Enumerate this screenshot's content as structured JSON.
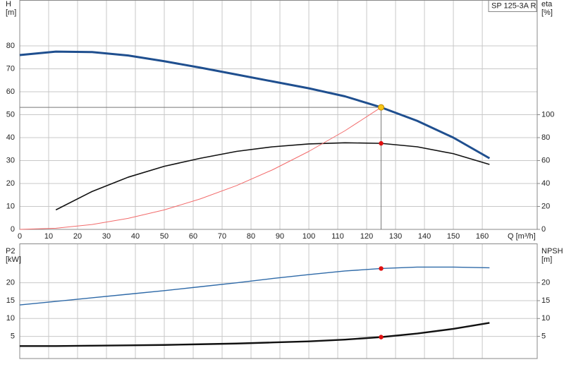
{
  "chart_data": [
    {
      "type": "line",
      "legend": "SP 125-3A R",
      "ylabel": "H",
      "ylabel_unit": "[m]",
      "y2label": "eta",
      "y2label_unit": "[%]",
      "xlabel": "Q [m³/h]",
      "xlim": [
        0,
        179
      ],
      "ylim": [
        0,
        100
      ],
      "y2lim": [
        0,
        200
      ],
      "xticks": [
        0,
        10,
        20,
        30,
        40,
        50,
        60,
        70,
        80,
        90,
        100,
        110,
        120,
        130,
        140,
        150,
        160
      ],
      "yticks": [
        0,
        10,
        20,
        30,
        40,
        50,
        60,
        70,
        80
      ],
      "y2ticks": [
        0,
        20,
        40,
        60,
        80,
        100
      ],
      "grid": true,
      "x": [
        0,
        12.5,
        25,
        37.5,
        50,
        62.5,
        75,
        87.5,
        100,
        112.5,
        125,
        137.5,
        150,
        162.5
      ],
      "series": [
        {
          "color": "#1f4f8f",
          "width": 3,
          "values": [
            76,
            77.5,
            77.3,
            75.8,
            73.3,
            70.5,
            67.5,
            64.5,
            61.5,
            58,
            53.2,
            47.3,
            40,
            31
          ]
        },
        {
          "color": "#111111",
          "width": 1.6,
          "axis": "y2",
          "values": [
            null,
            17,
            33,
            45.5,
            55,
            62,
            68,
            72,
            74.5,
            75.5,
            75,
            72,
            66,
            56.6
          ]
        },
        {
          "color": "#f26b6b",
          "width": 1,
          "values": [
            0,
            0.5,
            2.1,
            4.8,
            8.5,
            13.3,
            19.1,
            26,
            34,
            43,
            53.2,
            null,
            null,
            null
          ]
        }
      ],
      "markers": [
        {
          "x": 125,
          "y": 53.2,
          "color": "#f5c518",
          "crosshair": true
        },
        {
          "x": 125,
          "y": 75,
          "axis": "y2",
          "color": "#e01010"
        }
      ]
    },
    {
      "type": "line",
      "ylabel": "P2",
      "ylabel_unit": "[kW]",
      "y2label": "NPSH",
      "y2label_unit": "[m]",
      "xlim": [
        0,
        179
      ],
      "ylim": [
        -1.2,
        31
      ],
      "y2lim": [
        -1.2,
        31
      ],
      "xticks": [
        0,
        10,
        20,
        30,
        40,
        50,
        60,
        70,
        80,
        90,
        100,
        110,
        120,
        130,
        140,
        150,
        160
      ],
      "yticks": [
        5,
        10,
        15,
        20
      ],
      "y2ticks": [
        5,
        10,
        15,
        20
      ],
      "grid": true,
      "x": [
        0,
        12.5,
        25,
        37.5,
        50,
        62.5,
        75,
        87.5,
        100,
        112.5,
        125,
        137.5,
        150,
        162.5
      ],
      "series": [
        {
          "color": "#2f6aa8",
          "width": 1.4,
          "values": [
            13.8,
            14.8,
            15.8,
            16.8,
            17.8,
            18.9,
            20,
            21.2,
            22.3,
            23.3,
            24,
            24.4,
            24.4,
            24.2
          ]
        },
        {
          "color": "#111111",
          "width": 2.4,
          "axis": "y2",
          "values": [
            2.3,
            2.3,
            2.4,
            2.5,
            2.6,
            2.8,
            3,
            3.3,
            3.6,
            4.1,
            4.8,
            5.8,
            7.1,
            8.8
          ]
        }
      ],
      "markers": [
        {
          "x": 125,
          "y": 24,
          "color": "#e01010"
        },
        {
          "x": 125,
          "y": 4.8,
          "axis": "y2",
          "color": "#e01010"
        }
      ]
    }
  ]
}
